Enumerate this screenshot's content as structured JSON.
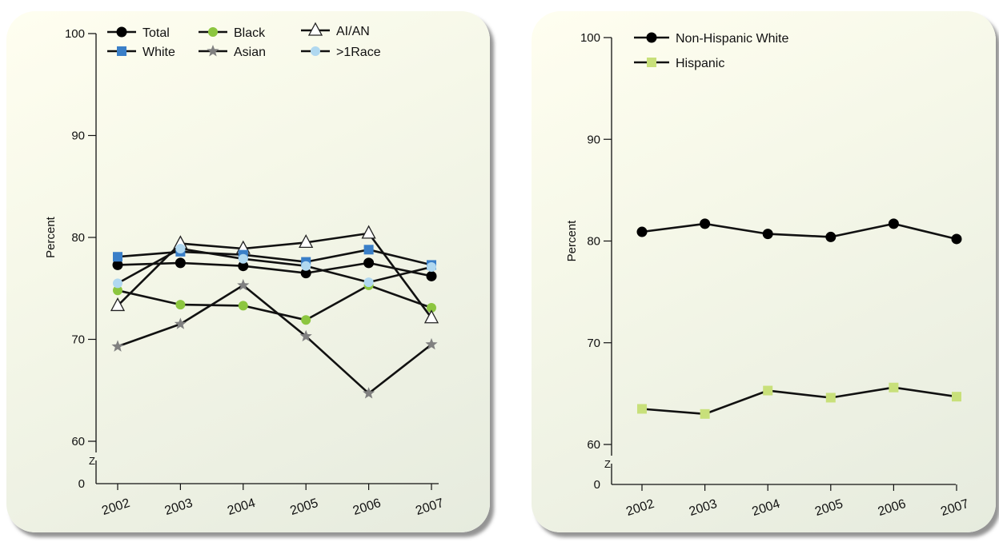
{
  "chart_data": [
    {
      "type": "line",
      "title": "",
      "xlabel": "",
      "ylabel": "Percent",
      "x": [
        "2002",
        "2003",
        "2004",
        "2005",
        "2006",
        "2007"
      ],
      "yticks": [
        "0",
        "60",
        "70",
        "80",
        "90",
        "100"
      ],
      "ylim": [
        60,
        100
      ],
      "axis_break": "Z",
      "legend_position": "top",
      "grid": false,
      "series": [
        {
          "name": "Total",
          "color": "#000000",
          "marker": "circle",
          "values": [
            77.3,
            77.5,
            77.2,
            76.5,
            77.5,
            76.2
          ]
        },
        {
          "name": "Black",
          "color": "#8cc63f",
          "marker": "circle",
          "values": [
            74.8,
            73.4,
            73.3,
            71.9,
            75.3,
            73.1
          ]
        },
        {
          "name": "AI/AN",
          "color": "#ffffff",
          "marker": "triangle",
          "values": [
            73.3,
            79.4,
            78.9,
            79.5,
            80.4,
            72.1
          ]
        },
        {
          "name": "White",
          "color": "#3a7fc8",
          "marker": "square",
          "values": [
            78.1,
            78.6,
            78.3,
            77.6,
            78.8,
            77.3
          ]
        },
        {
          "name": "Asian",
          "color": "#808080",
          "marker": "star",
          "values": [
            69.3,
            71.5,
            75.3,
            70.3,
            64.7,
            69.5
          ]
        },
        {
          "name": ">1Race",
          "color": "#b0d8f0",
          "marker": "circle",
          "values": [
            75.5,
            78.9,
            77.9,
            77.2,
            75.6,
            77.1
          ]
        }
      ]
    },
    {
      "type": "line",
      "title": "",
      "xlabel": "",
      "ylabel": "Percent",
      "x": [
        "2002",
        "2003",
        "2004",
        "2005",
        "2006",
        "2007"
      ],
      "yticks": [
        "0",
        "60",
        "70",
        "80",
        "90",
        "100"
      ],
      "ylim": [
        60,
        100
      ],
      "axis_break": "Z",
      "legend_position": "top-left",
      "grid": false,
      "series": [
        {
          "name": "Non-Hispanic White",
          "color": "#000000",
          "marker": "circle",
          "values": [
            80.9,
            81.7,
            80.7,
            80.4,
            81.7,
            80.2
          ]
        },
        {
          "name": "Hispanic",
          "color": "#c8e07a",
          "marker": "square",
          "values": [
            63.5,
            63.0,
            65.3,
            64.6,
            65.6,
            64.7
          ]
        }
      ]
    }
  ]
}
